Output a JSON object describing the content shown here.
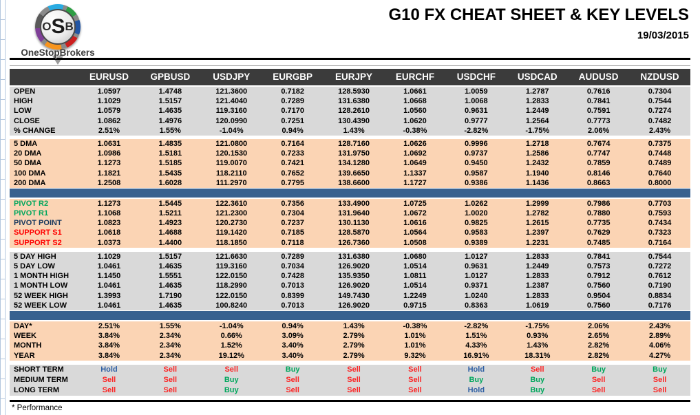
{
  "logo": {
    "monogram_parts": [
      "O",
      "S",
      "B"
    ],
    "brand": "OneStopBrokers"
  },
  "header": {
    "title": "G10 FX CHEAT SHEET & KEY LEVELS",
    "date": "19/03/2015"
  },
  "footer": {
    "note": "* Performance"
  },
  "colors": {
    "header_dark": "#3b3b3b",
    "section_gray": "#d9d9d9",
    "section_peach": "#fbd4b4",
    "divider_blue": "#38618f",
    "buy_green": "#00a65c",
    "sell_red": "#fb2525",
    "hold_blue": "#2e5fa3",
    "pivot_navy": "#17375d",
    "support_red": "#fe0000"
  },
  "table": {
    "columns": [
      "EURUSD",
      "GPBUSD",
      "USDJPY",
      "EURGBP",
      "EURJPY",
      "EURCHF",
      "USDCHF",
      "USDCAD",
      "AUDUSD",
      "NZDUSD"
    ],
    "sections": [
      {
        "name": "ohlc",
        "bg": "gray",
        "rows": [
          {
            "label": "OPEN",
            "values": [
              "1.0597",
              "1.4748",
              "121.3600",
              "0.7182",
              "128.5930",
              "1.0661",
              "1.0059",
              "1.2787",
              "0.7616",
              "0.7304"
            ]
          },
          {
            "label": "HIGH",
            "values": [
              "1.1029",
              "1.5157",
              "121.4040",
              "0.7289",
              "131.6380",
              "1.0668",
              "1.0068",
              "1.2833",
              "0.7841",
              "0.7544"
            ]
          },
          {
            "label": "LOW",
            "values": [
              "1.0579",
              "1.4635",
              "119.3160",
              "0.7170",
              "128.2610",
              "1.0560",
              "0.9631",
              "1.2449",
              "0.7591",
              "0.7274"
            ]
          },
          {
            "label": "CLOSE",
            "values": [
              "1.0862",
              "1.4976",
              "120.0990",
              "0.7251",
              "130.4390",
              "1.0620",
              "0.9777",
              "1.2564",
              "0.7773",
              "0.7482"
            ]
          },
          {
            "label": "% CHANGE",
            "values": [
              "2.51%",
              "1.55%",
              "-1.04%",
              "0.94%",
              "1.43%",
              "-0.38%",
              "-2.82%",
              "-1.75%",
              "2.06%",
              "2.43%"
            ]
          }
        ]
      },
      {
        "name": "dma",
        "bg": "peach",
        "rows": [
          {
            "label": "5 DMA",
            "values": [
              "1.0631",
              "1.4835",
              "121.0800",
              "0.7164",
              "128.7160",
              "1.0626",
              "0.9996",
              "1.2718",
              "0.7674",
              "0.7375"
            ]
          },
          {
            "label": "20 DMA",
            "values": [
              "1.0986",
              "1.5181",
              "120.1530",
              "0.7233",
              "131.9750",
              "1.0692",
              "0.9737",
              "1.2586",
              "0.7747",
              "0.7448"
            ]
          },
          {
            "label": "50 DMA",
            "values": [
              "1.1273",
              "1.5185",
              "119.0070",
              "0.7421",
              "134.1280",
              "1.0649",
              "0.9450",
              "1.2432",
              "0.7859",
              "0.7489"
            ]
          },
          {
            "label": "100 DMA",
            "values": [
              "1.1821",
              "1.5435",
              "118.2110",
              "0.7652",
              "139.6650",
              "1.1337",
              "0.9587",
              "1.1940",
              "0.8146",
              "0.7640"
            ]
          },
          {
            "label": "200 DMA",
            "values": [
              "1.2508",
              "1.6028",
              "111.2970",
              "0.7795",
              "138.6600",
              "1.1727",
              "0.9386",
              "1.1436",
              "0.8663",
              "0.8000"
            ]
          }
        ]
      },
      {
        "name": "divider-1",
        "divider": true
      },
      {
        "name": "pivots",
        "bg": "peach",
        "rows": [
          {
            "label": "PIVOT R2",
            "label_color": "green",
            "values": [
              "1.1273",
              "1.5445",
              "122.3610",
              "0.7356",
              "133.4900",
              "1.0725",
              "1.0262",
              "1.2999",
              "0.7986",
              "0.7703"
            ]
          },
          {
            "label": "PIVOT R1",
            "label_color": "green",
            "values": [
              "1.1068",
              "1.5211",
              "121.2300",
              "0.7304",
              "131.9640",
              "1.0672",
              "1.0020",
              "1.2782",
              "0.7880",
              "0.7593"
            ]
          },
          {
            "label": "PIVOT POINT",
            "label_color": "navy",
            "values": [
              "1.0823",
              "1.4923",
              "120.2730",
              "0.7237",
              "130.1130",
              "1.0616",
              "0.9825",
              "1.2615",
              "0.7735",
              "0.7434"
            ]
          },
          {
            "label": "SUPPORT S1",
            "label_color": "red",
            "values": [
              "1.0618",
              "1.4688",
              "119.1420",
              "0.7185",
              "128.5870",
              "1.0564",
              "0.9583",
              "1.2397",
              "0.7629",
              "0.7323"
            ]
          },
          {
            "label": "SUPPORT S2",
            "label_color": "red",
            "values": [
              "1.0373",
              "1.4400",
              "118.1850",
              "0.7118",
              "126.7360",
              "1.0508",
              "0.9389",
              "1.2231",
              "0.7485",
              "0.7164"
            ]
          }
        ]
      },
      {
        "name": "ranges",
        "bg": "gray",
        "rows": [
          {
            "label": "5 DAY HIGH",
            "values": [
              "1.1029",
              "1.5157",
              "121.6630",
              "0.7289",
              "131.6380",
              "1.0680",
              "1.0127",
              "1.2833",
              "0.7841",
              "0.7544"
            ]
          },
          {
            "label": "5 DAY LOW",
            "values": [
              "1.0461",
              "1.4635",
              "119.3160",
              "0.7034",
              "126.9020",
              "1.0514",
              "0.9631",
              "1.2449",
              "0.7573",
              "0.7272"
            ]
          },
          {
            "label": "1 MONTH HIGH",
            "values": [
              "1.1450",
              "1.5551",
              "122.0150",
              "0.7428",
              "135.9350",
              "1.0811",
              "1.0127",
              "1.2833",
              "0.7912",
              "0.7612"
            ]
          },
          {
            "label": "1 MONTH LOW",
            "values": [
              "1.0461",
              "1.4635",
              "118.2990",
              "0.7013",
              "126.9020",
              "1.0514",
              "0.9371",
              "1.2387",
              "0.7560",
              "0.7190"
            ]
          },
          {
            "label": "52 WEEK HIGH",
            "values": [
              "1.3993",
              "1.7190",
              "122.0150",
              "0.8399",
              "149.7430",
              "1.2249",
              "1.0240",
              "1.2833",
              "0.9504",
              "0.8834"
            ]
          },
          {
            "label": "52 WEEK LOW",
            "values": [
              "1.0461",
              "1.4635",
              "100.8240",
              "0.7013",
              "126.9020",
              "0.9715",
              "0.8363",
              "1.0619",
              "0.7560",
              "0.7176"
            ]
          }
        ]
      },
      {
        "name": "divider-2",
        "divider": true
      },
      {
        "name": "performance",
        "bg": "peach",
        "rows": [
          {
            "label": "DAY*",
            "values": [
              "2.51%",
              "1.55%",
              "-1.04%",
              "0.94%",
              "1.43%",
              "-0.38%",
              "-2.82%",
              "-1.75%",
              "2.06%",
              "2.43%"
            ]
          },
          {
            "label": "WEEK",
            "values": [
              "3.84%",
              "2.34%",
              "0.66%",
              "3.09%",
              "2.79%",
              "1.01%",
              "1.51%",
              "0.93%",
              "2.65%",
              "2.89%"
            ]
          },
          {
            "label": "MONTH",
            "values": [
              "3.84%",
              "2.34%",
              "1.52%",
              "3.40%",
              "2.79%",
              "1.01%",
              "4.33%",
              "1.43%",
              "2.82%",
              "4.06%"
            ]
          },
          {
            "label": "YEAR",
            "values": [
              "3.84%",
              "2.34%",
              "19.12%",
              "3.40%",
              "2.79%",
              "9.32%",
              "16.91%",
              "18.31%",
              "2.82%",
              "4.27%"
            ]
          }
        ]
      },
      {
        "name": "signals",
        "bg": "gray",
        "signals": true,
        "rows": [
          {
            "label": "SHORT TERM",
            "values": [
              "Hold",
              "Sell",
              "Sell",
              "Buy",
              "Sell",
              "Sell",
              "Hold",
              "Sell",
              "Buy",
              "Buy"
            ]
          },
          {
            "label": "MEDIUM TERM",
            "values": [
              "Sell",
              "Sell",
              "Buy",
              "Sell",
              "Sell",
              "Sell",
              "Buy",
              "Buy",
              "Sell",
              "Sell"
            ]
          },
          {
            "label": "LONG TERM",
            "values": [
              "Sell",
              "Sell",
              "Buy",
              "Sell",
              "Sell",
              "Sell",
              "Hold",
              "Buy",
              "Sell",
              "Sell"
            ]
          }
        ]
      }
    ]
  }
}
